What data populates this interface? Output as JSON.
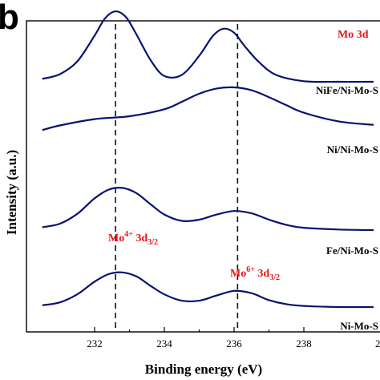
{
  "chart_data": {
    "type": "line",
    "panel_label": "b",
    "title": "Mo 3d",
    "xlabel": "Binding energy (eV)",
    "ylabel": "Intensity (a.u.)",
    "xlim": [
      230.5,
      240
    ],
    "x_ticks": [
      232,
      234,
      236,
      238
    ],
    "x_tick_labels": [
      "232",
      "234",
      "236",
      "238"
    ],
    "x_tick_partial_label": "2",
    "x_axis_reversed": false,
    "y_ticks_shown": false,
    "grid": false,
    "legend": "none",
    "reference_lines": [
      {
        "x": 232.6,
        "style": "dashed"
      },
      {
        "x": 236.1,
        "style": "dashed"
      }
    ],
    "annotations": [
      {
        "text_main": "Mo",
        "sup": "4+",
        "text_after": " 3d",
        "sub": "3/2",
        "x": 232.7
      },
      {
        "text_main": "Mo",
        "sup": "6+",
        "text_after": " 3d",
        "sub": "3/2",
        "x": 236.3
      }
    ],
    "series": [
      {
        "name": "NiFe/Ni-Mo-S",
        "x": [
          230.5,
          231.0,
          231.5,
          232.0,
          232.3,
          232.6,
          232.9,
          233.2,
          233.6,
          234.0,
          234.5,
          235.0,
          235.4,
          235.7,
          236.0,
          236.3,
          236.7,
          237.2,
          238.0,
          239.0,
          240.0
        ],
        "y": [
          3.05,
          3.13,
          3.35,
          3.8,
          4.1,
          4.22,
          4.12,
          3.82,
          3.38,
          3.1,
          3.12,
          3.45,
          3.8,
          3.92,
          3.85,
          3.62,
          3.35,
          3.12,
          3.01,
          3.0,
          3.0
        ]
      },
      {
        "name": "Ni/Ni-Mo-S",
        "x": [
          230.5,
          231.0,
          232.0,
          233.0,
          234.0,
          234.5,
          235.0,
          235.5,
          236.0,
          236.5,
          237.0,
          237.5,
          238.0,
          239.0,
          240.0
        ],
        "y": [
          2.08,
          2.16,
          2.27,
          2.32,
          2.44,
          2.57,
          2.71,
          2.8,
          2.82,
          2.77,
          2.65,
          2.51,
          2.38,
          2.23,
          2.17
        ]
      },
      {
        "name": "Fe/Ni-Mo-S",
        "x": [
          230.5,
          231.0,
          231.5,
          232.0,
          232.4,
          232.8,
          233.2,
          233.6,
          234.0,
          234.5,
          235.0,
          235.5,
          236.0,
          236.5,
          237.0,
          237.5,
          238.0,
          239.0,
          240.0
        ],
        "y": [
          1.05,
          1.11,
          1.28,
          1.55,
          1.7,
          1.73,
          1.64,
          1.45,
          1.27,
          1.16,
          1.18,
          1.27,
          1.33,
          1.29,
          1.18,
          1.09,
          1.04,
          1.01,
          1.0
        ]
      },
      {
        "name": "Ni-Mo-S",
        "x": [
          230.5,
          231.0,
          231.5,
          232.0,
          232.4,
          232.8,
          233.2,
          233.6,
          234.0,
          234.5,
          235.0,
          235.5,
          236.0,
          236.5,
          237.0,
          237.5,
          238.0,
          239.0,
          240.0
        ],
        "y": [
          0.03,
          0.08,
          0.22,
          0.44,
          0.57,
          0.6,
          0.53,
          0.37,
          0.22,
          0.11,
          0.11,
          0.2,
          0.28,
          0.24,
          0.12,
          0.05,
          0.02,
          0.0,
          0.0
        ]
      }
    ]
  }
}
